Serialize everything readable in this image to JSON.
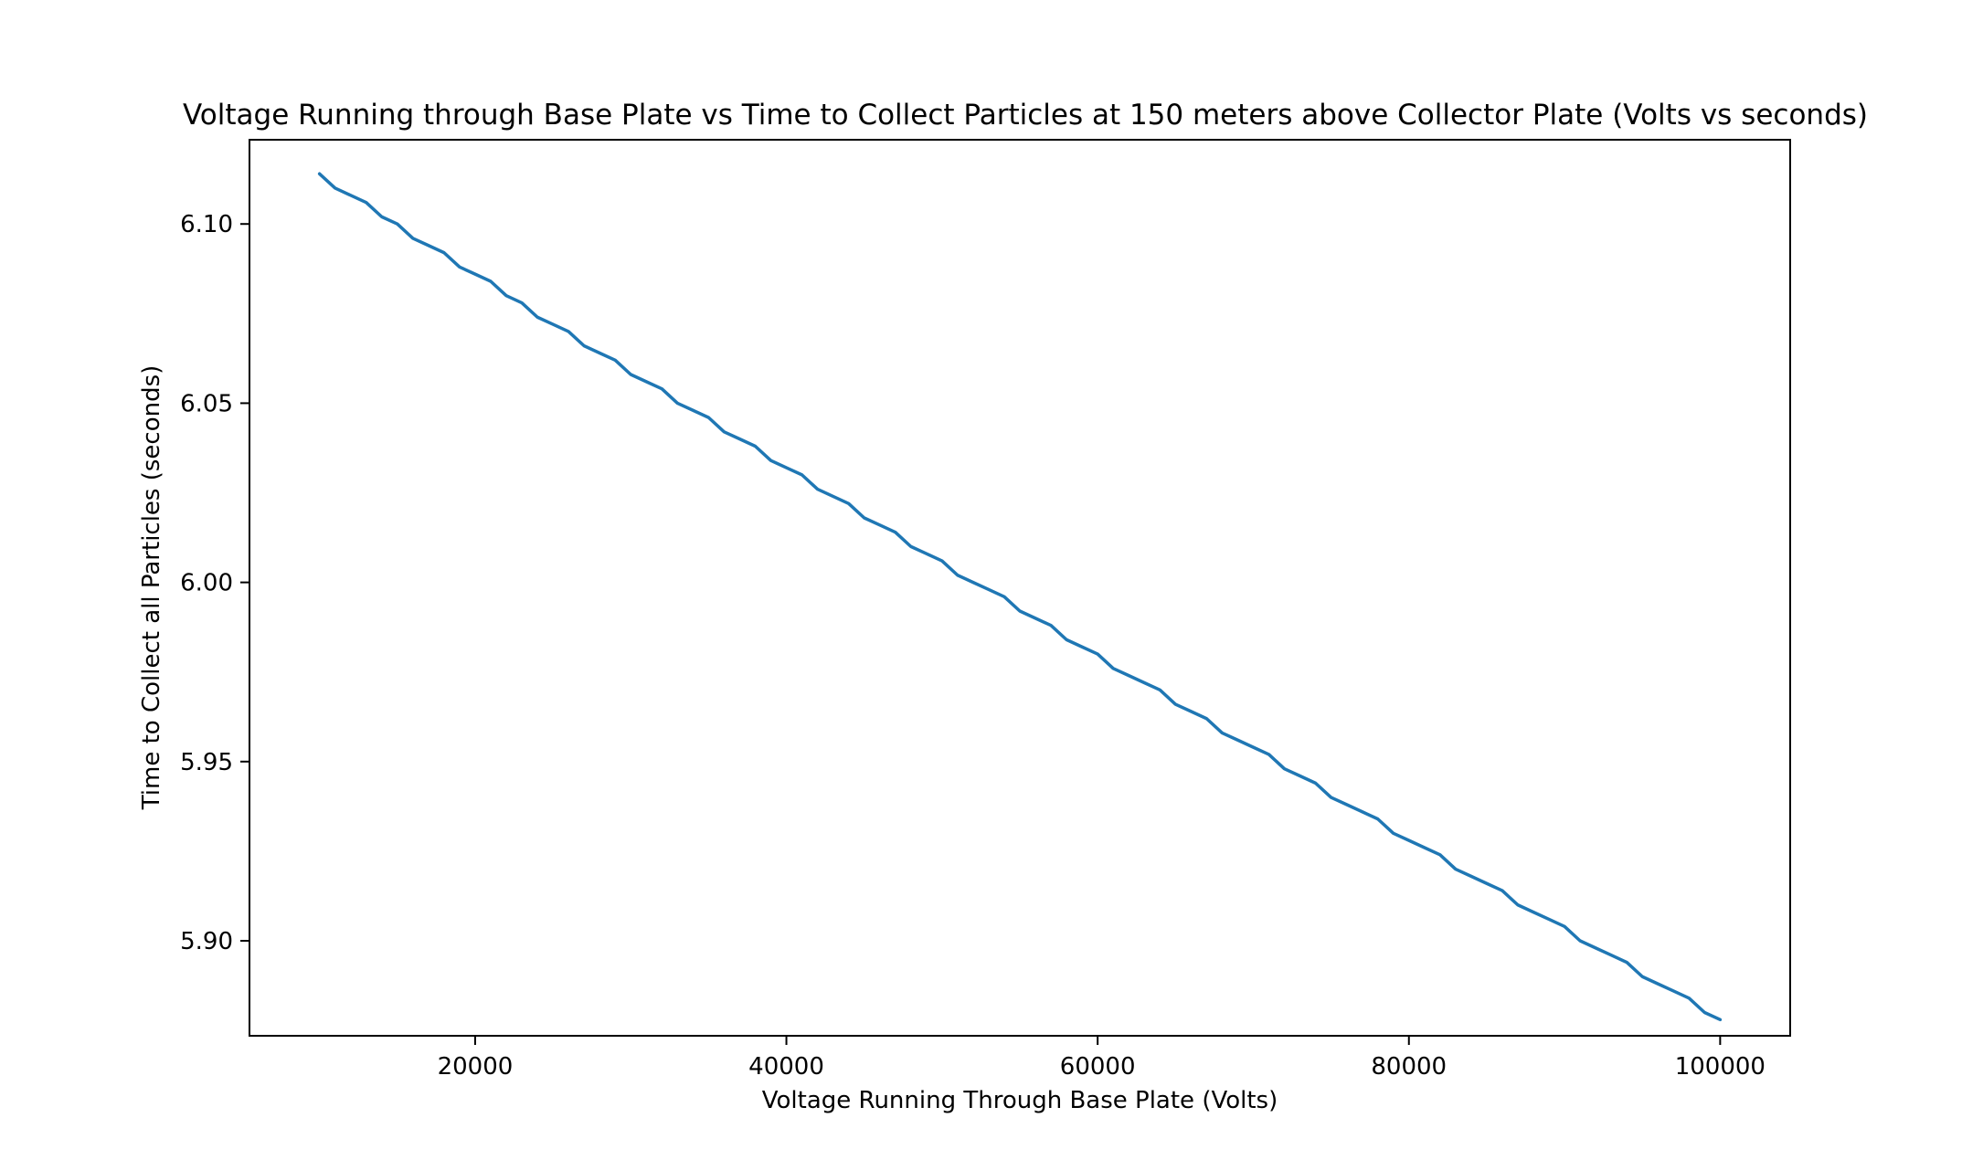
{
  "chart_data": {
    "type": "line",
    "title": "Voltage Running through Base Plate vs Time to Collect Particles at 150 meters above Collector Plate (Volts vs seconds)",
    "xlabel": "Voltage Running Through Base Plate (Volts)",
    "ylabel": "Time to Collect all Particles (seconds)",
    "xlim": [
      5500,
      104500
    ],
    "ylim": [
      5.8735,
      6.1235
    ],
    "xticks": [
      20000,
      40000,
      60000,
      80000,
      100000
    ],
    "xtick_labels": [
      "20000",
      "40000",
      "60000",
      "80000",
      "100000"
    ],
    "yticks": [
      5.9,
      5.95,
      6.0,
      6.05,
      6.1
    ],
    "ytick_labels": [
      "5.90",
      "5.95",
      "6.00",
      "6.05",
      "6.10"
    ],
    "grid": false,
    "color": "#1f77b4",
    "series": [
      {
        "x": [
          10000,
          11000,
          12000,
          13000,
          14000,
          15000,
          16000,
          17000,
          18000,
          19000,
          20000,
          21000,
          22000,
          23000,
          24000,
          25000,
          26000,
          27000,
          28000,
          29000,
          30000,
          31000,
          32000,
          33000,
          34000,
          35000,
          36000,
          37000,
          38000,
          39000,
          40000,
          41000,
          42000,
          43000,
          44000,
          45000,
          46000,
          47000,
          48000,
          49000,
          50000,
          51000,
          52000,
          53000,
          54000,
          55000,
          56000,
          57000,
          58000,
          59000,
          60000,
          61000,
          62000,
          63000,
          64000,
          65000,
          66000,
          67000,
          68000,
          69000,
          70000,
          71000,
          72000,
          73000,
          74000,
          75000,
          76000,
          77000,
          78000,
          79000,
          80000,
          81000,
          82000,
          83000,
          84000,
          85000,
          86000,
          87000,
          88000,
          89000,
          90000,
          91000,
          92000,
          93000,
          94000,
          95000,
          96000,
          97000,
          98000,
          99000,
          100000
        ],
        "y": [
          6.114,
          6.11,
          6.108,
          6.106,
          6.102,
          6.1,
          6.096,
          6.094,
          6.092,
          6.088,
          6.086,
          6.084,
          6.08,
          6.078,
          6.074,
          6.072,
          6.07,
          6.066,
          6.064,
          6.062,
          6.058,
          6.056,
          6.054,
          6.05,
          6.048,
          6.046,
          6.042,
          6.04,
          6.038,
          6.034,
          6.032,
          6.03,
          6.026,
          6.024,
          6.022,
          6.018,
          6.016,
          6.014,
          6.01,
          6.008,
          6.006,
          6.002,
          6.0,
          5.998,
          5.996,
          5.992,
          5.99,
          5.988,
          5.984,
          5.982,
          5.98,
          5.976,
          5.974,
          5.972,
          5.97,
          5.966,
          5.964,
          5.962,
          5.958,
          5.956,
          5.954,
          5.952,
          5.948,
          5.946,
          5.944,
          5.94,
          5.938,
          5.936,
          5.934,
          5.93,
          5.928,
          5.926,
          5.924,
          5.92,
          5.918,
          5.916,
          5.914,
          5.91,
          5.908,
          5.906,
          5.904,
          5.9,
          5.898,
          5.896,
          5.894,
          5.89,
          5.888,
          5.886,
          5.884,
          5.88,
          5.878
        ]
      }
    ]
  }
}
